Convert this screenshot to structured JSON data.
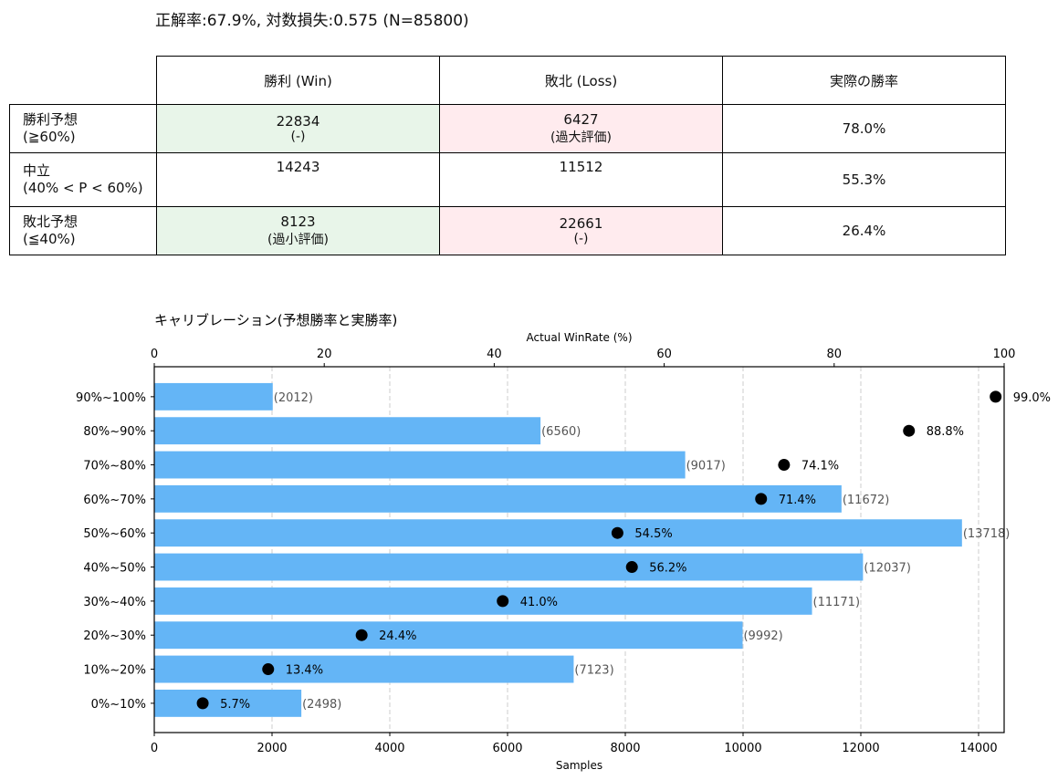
{
  "summary_title": "正解率:67.9%, 対数損失:0.575 (N=85800)",
  "table": {
    "headers": [
      "勝利 (Win)",
      "敗北 (Loss)",
      "実際の勝率"
    ],
    "rows": [
      {
        "label1": "勝利予想",
        "label2": "(≧60%)",
        "win": "22834",
        "win_note": "(-)",
        "loss": "6427",
        "loss_note": "(過大評価)",
        "rate": "78.0%"
      },
      {
        "label1": "中立",
        "label2": "(40% < P < 60%)",
        "win": "14243",
        "win_note": "",
        "loss": "11512",
        "loss_note": "",
        "rate": "55.3%"
      },
      {
        "label1": "敗北予想",
        "label2": "(≦40%)",
        "win": "8123",
        "win_note": "(過小評価)",
        "loss": "22661",
        "loss_note": "(-)",
        "rate": "26.4%"
      }
    ],
    "colors": {
      "correct": "#e8f5e9",
      "wrong": "#ffebee"
    }
  },
  "chart_data": {
    "type": "bar",
    "orientation": "horizontal",
    "title": "キャリブレーション(予想勝率と実勝率)",
    "xlabel": "Samples",
    "x2label": "Actual WinRate (%)",
    "categories": [
      "0%~10%",
      "10%~20%",
      "20%~30%",
      "30%~40%",
      "40%~50%",
      "50%~60%",
      "60%~70%",
      "70%~80%",
      "80%~90%",
      "90%~100%"
    ],
    "samples": [
      2498,
      7123,
      9992,
      11171,
      12037,
      13718,
      11672,
      9017,
      6560,
      2012
    ],
    "sample_labels": [
      "(2498)",
      "(7123)",
      "(9992)",
      "(11171)",
      "(12037)",
      "(13718)",
      "(11672)",
      "(9017)",
      "(6560)",
      "(2012)"
    ],
    "actual_winrate": [
      5.7,
      13.4,
      24.4,
      41.0,
      56.2,
      54.5,
      71.4,
      74.1,
      88.8,
      99.0
    ],
    "winrate_labels": [
      "5.7%",
      "13.4%",
      "24.4%",
      "41.0%",
      "56.2%",
      "54.5%",
      "71.4%",
      "74.1%",
      "88.8%",
      "99.0%"
    ],
    "xlim": [
      0,
      14434
    ],
    "xticks": [
      "0",
      "2000",
      "4000",
      "6000",
      "8000",
      "10000",
      "12000",
      "14000"
    ],
    "x2lim": [
      0,
      100
    ],
    "x2ticks": [
      "0",
      "20",
      "40",
      "60",
      "80",
      "100"
    ],
    "grid": "vertical dashed",
    "bar_color": "#64b5f6",
    "point_color": "#000000"
  }
}
